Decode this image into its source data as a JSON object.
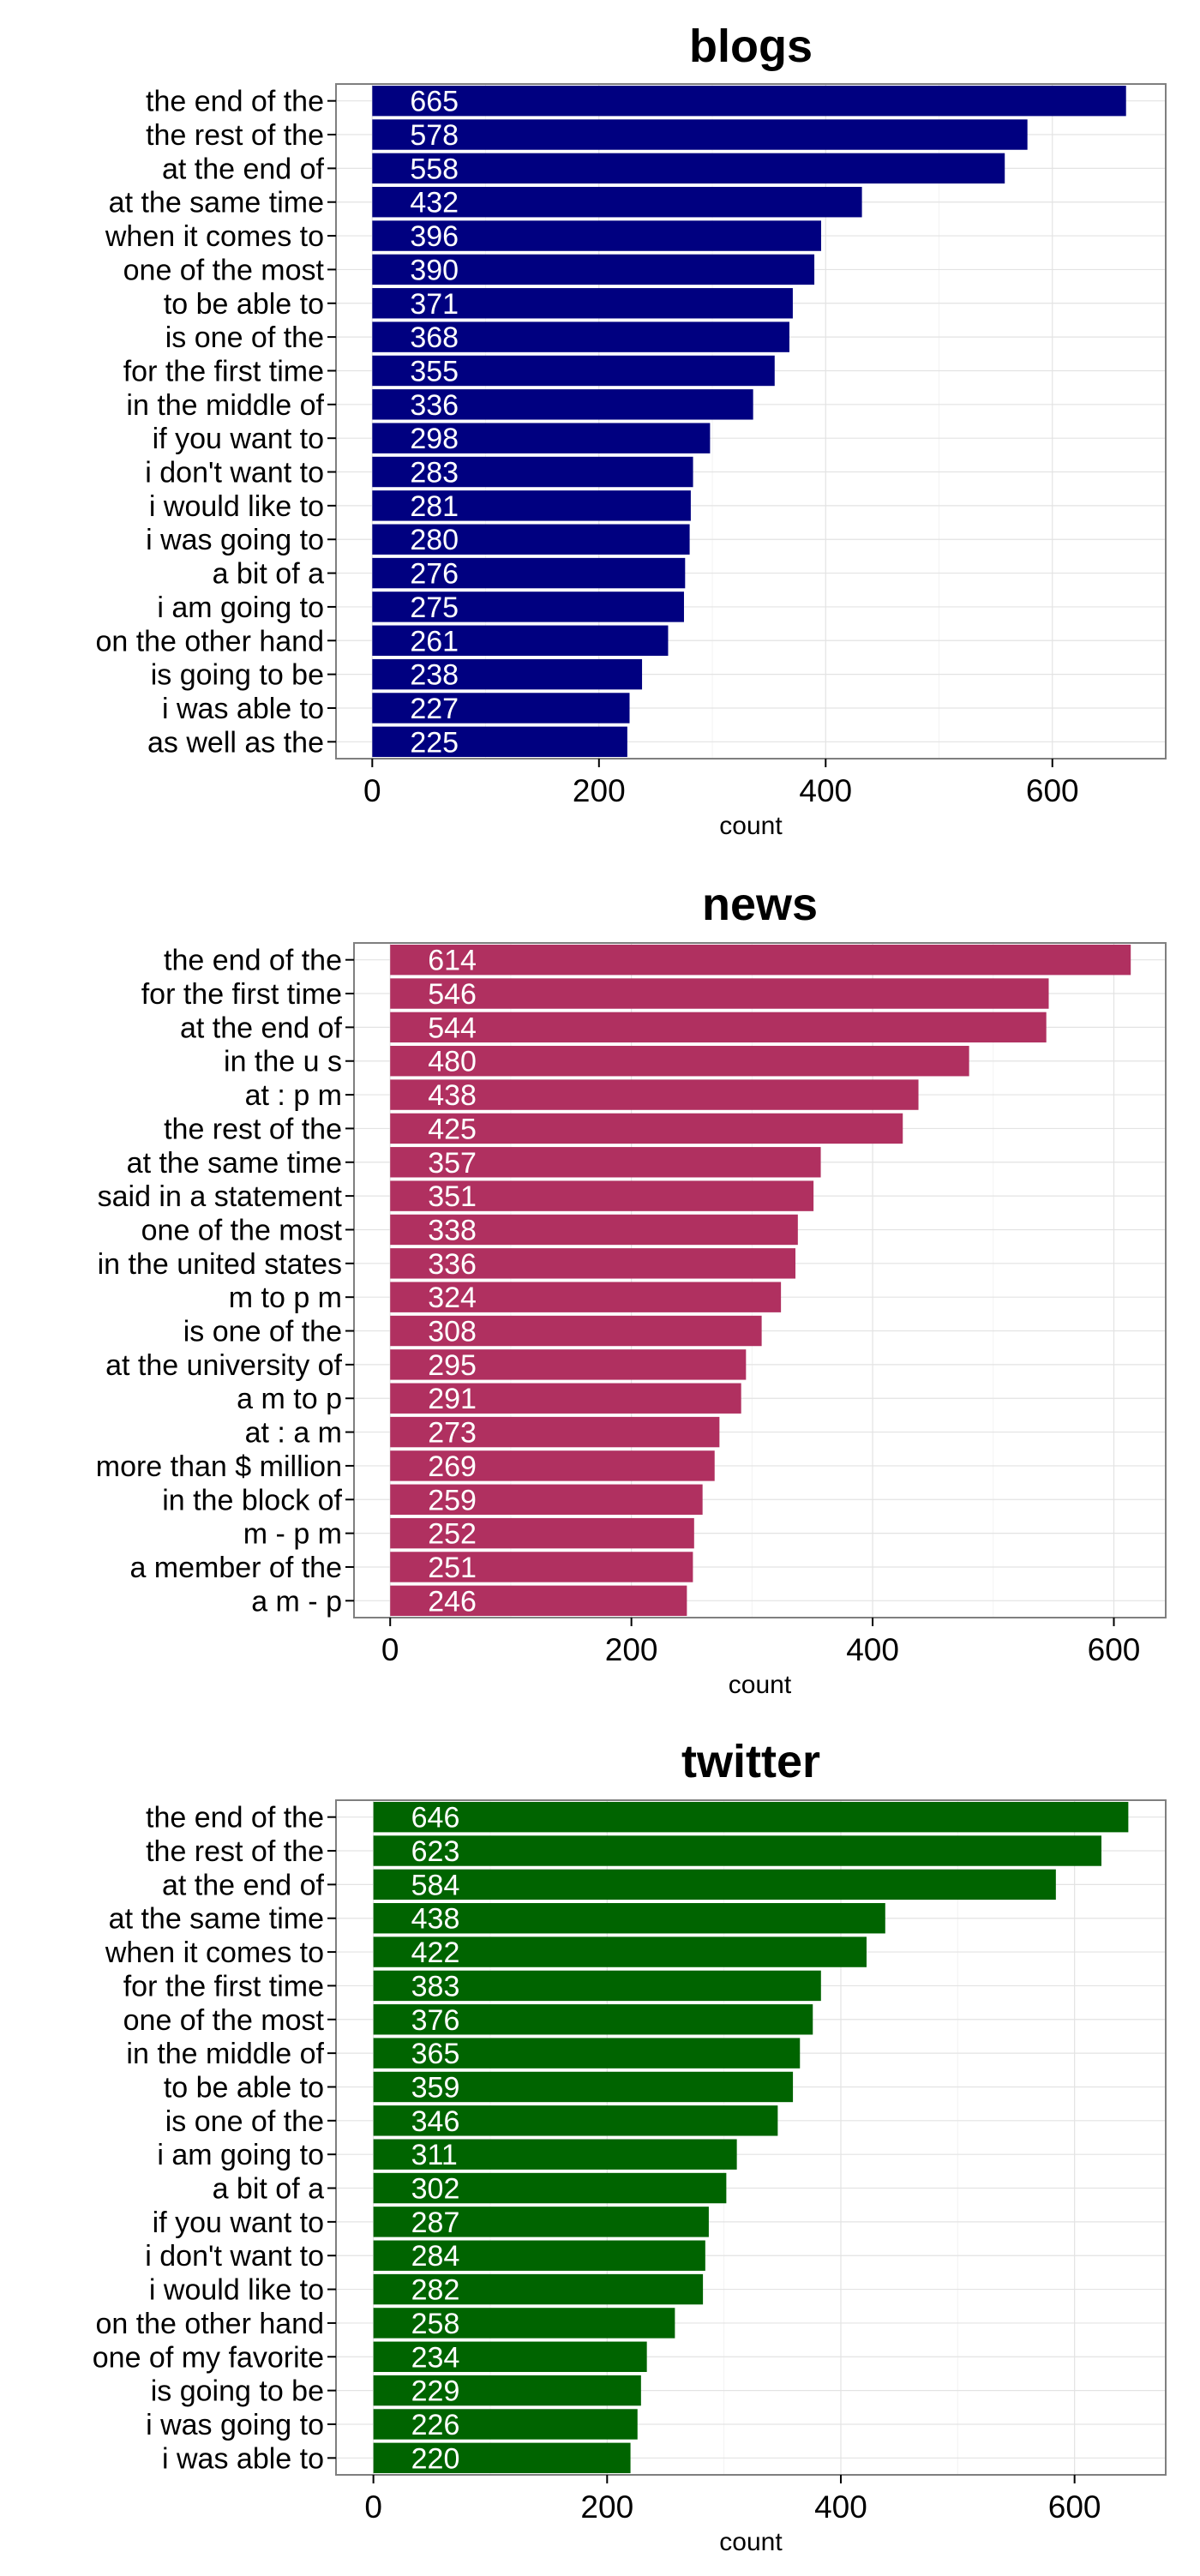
{
  "chart_data": [
    {
      "type": "bar",
      "orientation": "horizontal",
      "title": "blogs",
      "xlabel": "count",
      "ylabel": "",
      "xlim": [
        -32,
        700
      ],
      "xticks": [
        0,
        200,
        400,
        600
      ],
      "xtick_labels": [
        "0",
        "200",
        "400",
        "600"
      ],
      "grid": true,
      "legend": "none",
      "bar_color": "#000080",
      "value_label_color": "#ffffff",
      "categories": [
        "the end of the",
        "the rest of the",
        "at the end of",
        "at the same time",
        "when it comes to",
        "one of the most",
        "to be able to",
        "is one of the",
        "for the first time",
        "in the middle of",
        "if you want to",
        "i don't want to",
        "i would like to",
        "i was going to",
        "a bit of a",
        "i am going to",
        "on the other hand",
        "is going to be",
        "i was able to",
        "as well as the"
      ],
      "values": [
        665,
        578,
        558,
        432,
        396,
        390,
        371,
        368,
        355,
        336,
        298,
        283,
        281,
        280,
        276,
        275,
        261,
        238,
        227,
        225
      ],
      "value_labels": [
        "665",
        "578",
        "558",
        "432",
        "396",
        "390",
        "371",
        "368",
        "355",
        "336",
        "298",
        "283",
        "281",
        "280",
        "276",
        "275",
        "261",
        "238",
        "227",
        "225"
      ]
    },
    {
      "type": "bar",
      "orientation": "horizontal",
      "title": "news",
      "xlabel": "count",
      "ylabel": "",
      "xlim": [
        -30,
        643
      ],
      "xticks": [
        0,
        200,
        400,
        600
      ],
      "xtick_labels": [
        "0",
        "200",
        "400",
        "600"
      ],
      "grid": true,
      "legend": "none",
      "bar_color": "#b03060",
      "value_label_color": "#ffffff",
      "categories": [
        "the end of the",
        "for the first time",
        "at the end of",
        "in the u s",
        "at : p m",
        "the rest of the",
        "at the same time",
        "said in a statement",
        "one of the most",
        "in the united states",
        "m to p m",
        "is one of the",
        "at the university of",
        "a m to p",
        "at : a m",
        "more than $ million",
        "in the block of",
        "m - p m",
        "a member of the",
        "a m - p"
      ],
      "values": [
        614,
        546,
        544,
        480,
        438,
        425,
        357,
        351,
        338,
        336,
        324,
        308,
        295,
        291,
        273,
        269,
        259,
        252,
        251,
        246
      ],
      "value_labels": [
        "614",
        "546",
        "544",
        "480",
        "438",
        "425",
        "357",
        "351",
        "338",
        "336",
        "324",
        "308",
        "295",
        "291",
        "273",
        "269",
        "259",
        "252",
        "251",
        "246"
      ]
    },
    {
      "type": "bar",
      "orientation": "horizontal",
      "title": "twitter",
      "xlabel": "count",
      "ylabel": "",
      "xlim": [
        -32,
        678
      ],
      "xticks": [
        0,
        200,
        400,
        600
      ],
      "xtick_labels": [
        "0",
        "200",
        "400",
        "600"
      ],
      "grid": true,
      "legend": "none",
      "bar_color": "#006400",
      "value_label_color": "#ffffff",
      "categories": [
        "the end of the",
        "the rest of the",
        "at the end of",
        "at the same time",
        "when it comes to",
        "for the first time",
        "one of the most",
        "in the middle of",
        "to be able to",
        "is one of the",
        "i am going to",
        "a bit of a",
        "if you want to",
        "i don't want to",
        "i would like to",
        "on the other hand",
        "one of my favorite",
        "is going to be",
        "i was going to",
        "i was able to"
      ],
      "values": [
        646,
        623,
        584,
        438,
        422,
        383,
        376,
        365,
        359,
        346,
        311,
        302,
        287,
        284,
        282,
        258,
        234,
        229,
        226,
        220
      ],
      "value_labels": [
        "646",
        "623",
        "584",
        "438",
        "422",
        "383",
        "376",
        "365",
        "359",
        "346",
        "311",
        "302",
        "287",
        "284",
        "282",
        "258",
        "234",
        "229",
        "226",
        "220"
      ]
    }
  ]
}
